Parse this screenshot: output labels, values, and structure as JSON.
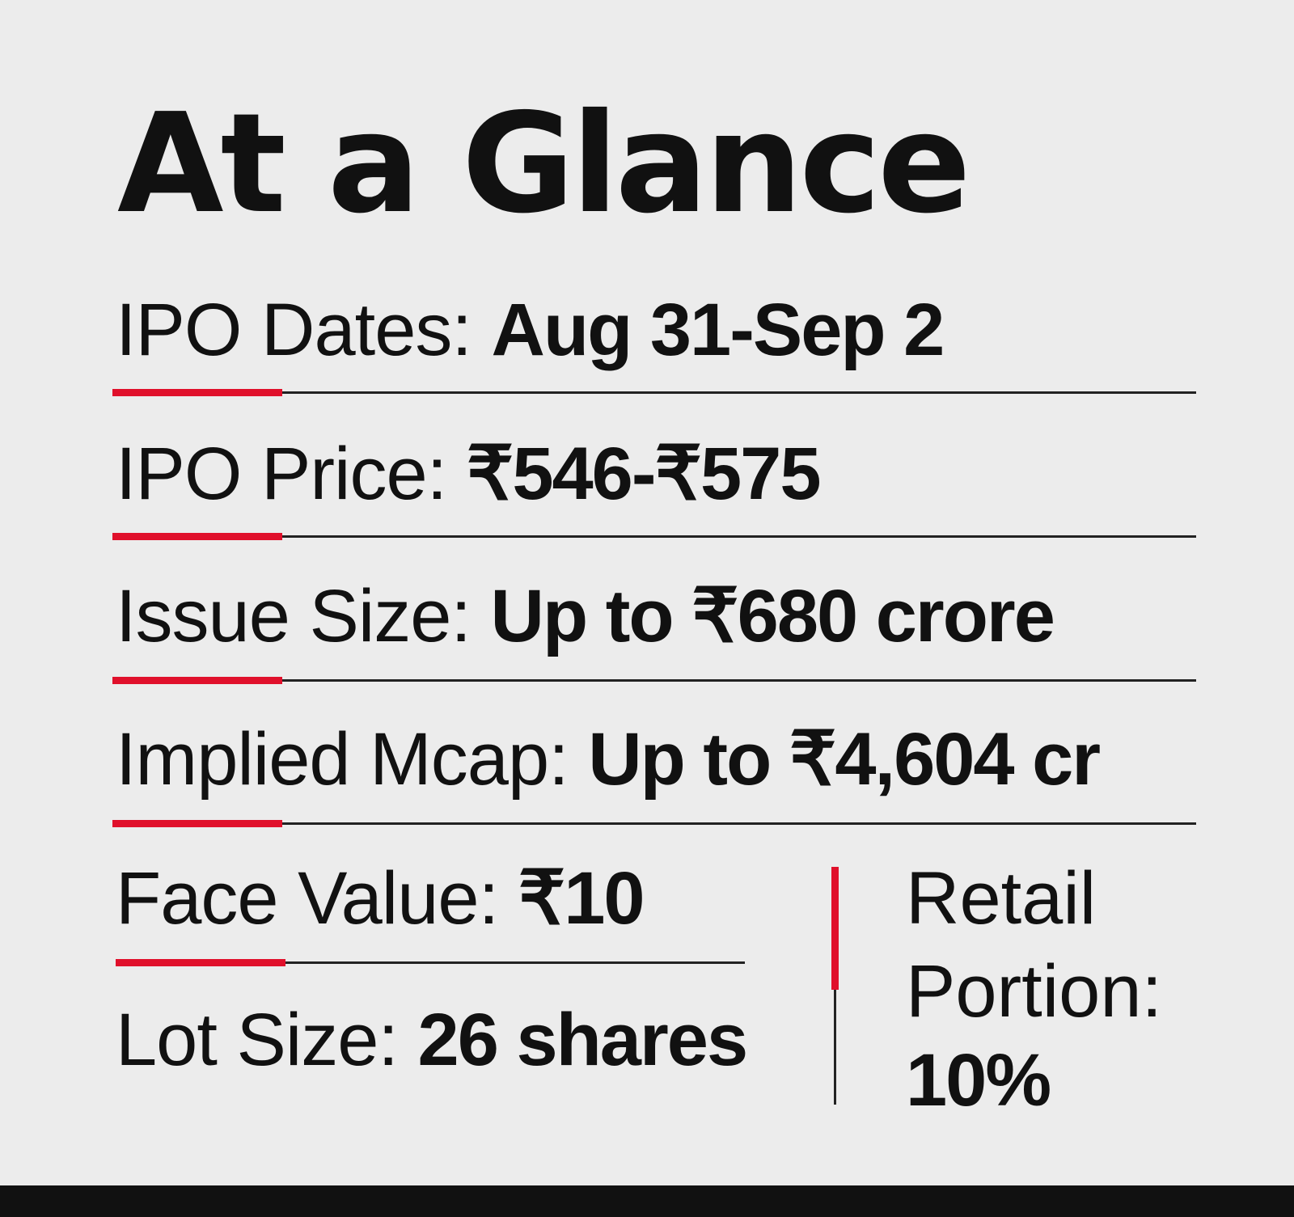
{
  "title": "At a Glance",
  "rows": [
    {
      "label": "IPO Dates:",
      "value": "Aug 31-Sep 2"
    },
    {
      "label": "IPO Price:",
      "value": "₹546-₹575"
    },
    {
      "label": "Issue Size:",
      "value": "Up to ₹680 crore"
    },
    {
      "label": "Implied Mcap:",
      "value": "Up to ₹4,604 cr"
    },
    {
      "label": "Face Value:",
      "value": "₹10"
    },
    {
      "label": "Lot Size:",
      "value": "26 shares"
    }
  ],
  "retail": {
    "line1": "Retail",
    "line2": "Portion:",
    "value": "10%"
  },
  "colors": {
    "accent": "#e0102b",
    "text": "#111111",
    "background": "#ececec"
  }
}
